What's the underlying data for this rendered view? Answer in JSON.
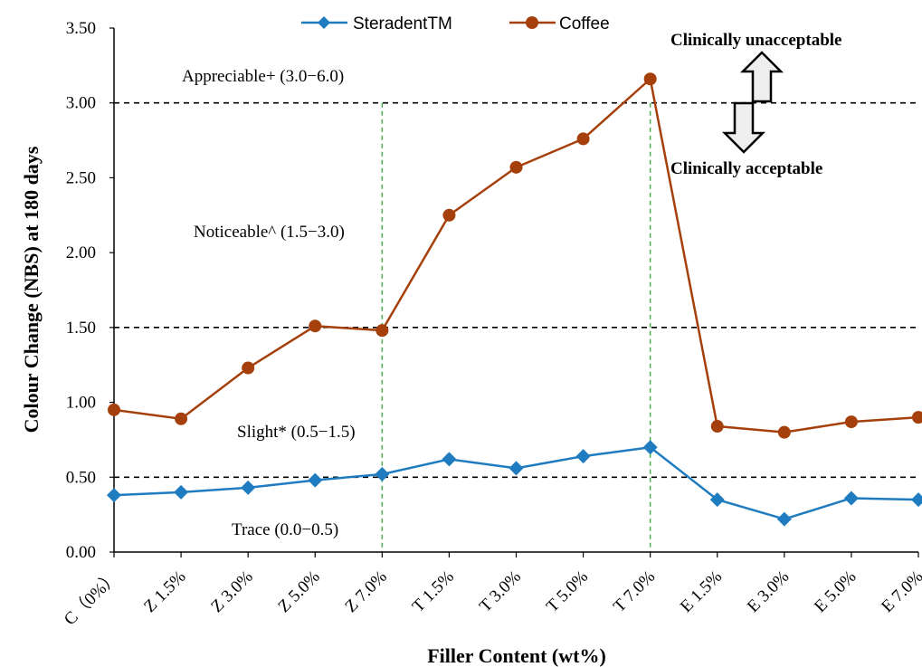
{
  "chart_data": {
    "type": "line",
    "categories": [
      "C（0%）",
      "Z 1.5%",
      "Z 3.0%",
      "Z 5.0%",
      "Z 7.0%",
      "T 1.5%",
      "T 3.0%",
      "T 5.0%",
      "T 7.0%",
      "E 1.5%",
      "E 3.0%",
      "E 5.0%",
      "E 7.0%"
    ],
    "series": [
      {
        "name": "SteradentTM",
        "color": "#1f7cc0",
        "marker": "diamond",
        "values": [
          0.38,
          0.4,
          0.43,
          0.48,
          0.52,
          0.62,
          0.56,
          0.64,
          0.7,
          0.35,
          0.22,
          0.36,
          0.35
        ]
      },
      {
        "name": "Coffee",
        "color": "#a5400c",
        "marker": "circle",
        "values": [
          0.95,
          0.89,
          1.23,
          1.51,
          1.48,
          2.25,
          2.57,
          2.76,
          3.16,
          0.84,
          0.8,
          0.87,
          0.9
        ]
      }
    ],
    "xlabel": "Filler Content (wt%)",
    "ylabel": "Colour Change (NBS) at 180 days",
    "ylim": [
      0,
      3.5
    ],
    "yticks": [
      "0.00",
      "0.50",
      "1.00",
      "1.50",
      "2.00",
      "2.50",
      "3.00",
      "3.50"
    ],
    "grid": false,
    "legend": "top-center",
    "reference_lines": [
      0.5,
      1.5,
      3.0
    ],
    "group_separators": [
      "Z 7.0%",
      "T 7.0%"
    ],
    "annotations": {
      "trace": "Trace (0.0−0.5)",
      "slight": "Slight* (0.5−1.5)",
      "noticeable": "Noticeable^ (1.5−3.0)",
      "appreciable": "Appreciable+ (3.0−6.0)",
      "unacceptable": "Clinically unacceptable",
      "acceptable": "Clinically acceptable"
    }
  }
}
